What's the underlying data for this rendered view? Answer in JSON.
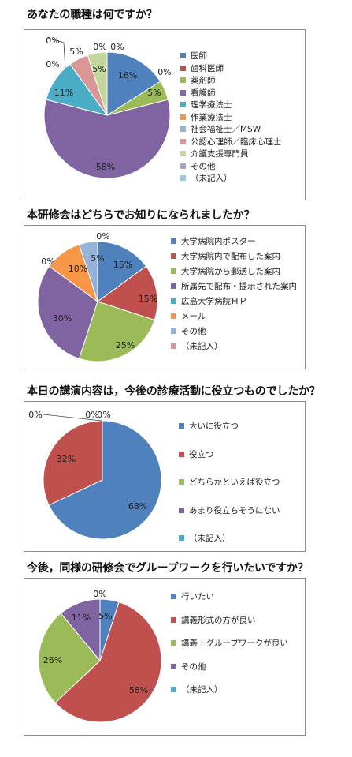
{
  "chart_data": [
    {
      "type": "pie",
      "title": "あなたの職種は何ですか？",
      "categories": [
        "医師",
        "歯科医師",
        "薬剤師",
        "看護師",
        "理学療法士",
        "作業療法士",
        "社会福祉士／MSW",
        "公認心理師／臨床心理士",
        "介護支援専門員",
        "その他",
        "（未記入）"
      ],
      "values": [
        16,
        0,
        5,
        58,
        11,
        0,
        0,
        5,
        5,
        0,
        0
      ],
      "labels": [
        "16%",
        "0%",
        "5%",
        "58%",
        "11%",
        "0%",
        "0%",
        "5%",
        "5%",
        "0%",
        "0%"
      ],
      "colors": [
        "#4f81bd",
        "#c0504d",
        "#9bbb59",
        "#8064a2",
        "#4bacc6",
        "#f79646",
        "#95b3d7",
        "#d99694",
        "#c3d69b",
        "#b3a2c7",
        "#93cddd"
      ],
      "legend_position": "right"
    },
    {
      "type": "pie",
      "title": "本研修会はどちらでお知りになられましたか？",
      "categories": [
        "大学病院内ポスター",
        "大学病院内で配布した案内",
        "大学病院から郵送した案内",
        "所属先で配布・提示された案内",
        "広島大学病院ＨＰ",
        "メール",
        "その他",
        "（未記入）"
      ],
      "values": [
        15,
        15,
        25,
        30,
        0,
        10,
        5,
        0
      ],
      "labels": [
        "15%",
        "15%",
        "25%",
        "30%",
        "0%",
        "10%",
        "5%",
        "0%"
      ],
      "colors": [
        "#4f81bd",
        "#c0504d",
        "#9bbb59",
        "#8064a2",
        "#4bacc6",
        "#f79646",
        "#95b3d7",
        "#d99694"
      ],
      "legend_position": "right"
    },
    {
      "type": "pie",
      "title": "本日の講演内容は，今後の診療活動に役立つものでしたか？",
      "categories": [
        "大いに役立つ",
        "役立つ",
        "どちらかといえば役立つ",
        "あまり役立ちそうにない",
        "（未記入）"
      ],
      "values": [
        68,
        32,
        0,
        0,
        0
      ],
      "labels": [
        "68%",
        "32%",
        "0%",
        "0%",
        "0%"
      ],
      "colors": [
        "#4f81bd",
        "#c0504d",
        "#9bbb59",
        "#8064a2",
        "#4bacc6"
      ],
      "legend_position": "right"
    },
    {
      "type": "pie",
      "title": "今後，同様の研修会でグループワークを行いたいですか？",
      "categories": [
        "行いたい",
        "講義形式の方が良い",
        "講義＋グループワークが良い",
        "その他",
        "（未記入）"
      ],
      "values": [
        5,
        58,
        26,
        11,
        0
      ],
      "labels": [
        "5%",
        "58%",
        "26%",
        "11%",
        "0%"
      ],
      "colors": [
        "#4f81bd",
        "#c0504d",
        "#9bbb59",
        "#8064a2",
        "#4bacc6"
      ],
      "legend_position": "right"
    }
  ]
}
